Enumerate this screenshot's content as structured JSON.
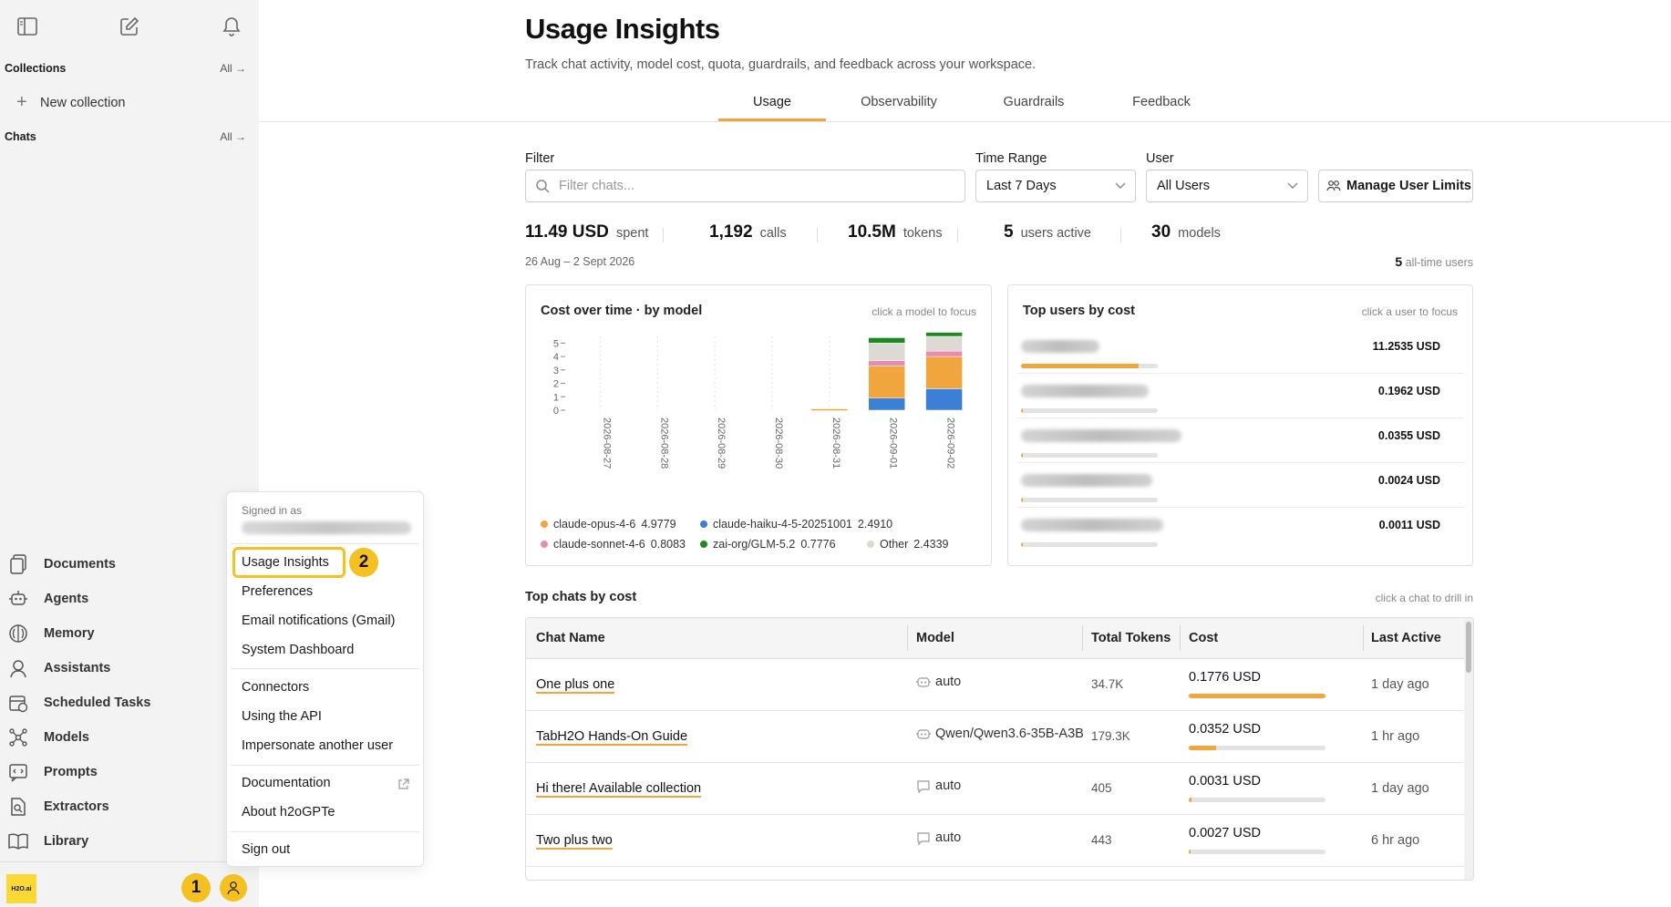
{
  "sidebar": {
    "collections_title": "Collections",
    "collections_all": "All →",
    "new_collection": "New collection",
    "chats_title": "Chats",
    "chats_all": "All →",
    "nav": [
      {
        "label": "Documents",
        "icon": "documents-icon"
      },
      {
        "label": "Agents",
        "icon": "agents-icon"
      },
      {
        "label": "Memory",
        "icon": "memory-icon"
      },
      {
        "label": "Assistants",
        "icon": "assistants-icon"
      },
      {
        "label": "Scheduled Tasks",
        "icon": "calendar-icon"
      },
      {
        "label": "Models",
        "icon": "models-icon"
      },
      {
        "label": "Prompts",
        "icon": "prompts-icon"
      },
      {
        "label": "Extractors",
        "icon": "extractors-icon"
      },
      {
        "label": "Library",
        "icon": "library-icon"
      }
    ],
    "logo_text": "H2O.ai",
    "badge_1": "1",
    "badge_2": "2"
  },
  "menu": {
    "signed_in_as": "Signed in as",
    "items": {
      "usage_insights": "Usage Insights",
      "preferences": "Preferences",
      "email_notifications": "Email notifications (Gmail)",
      "system_dashboard": "System Dashboard",
      "connectors": "Connectors",
      "using_api": "Using the API",
      "impersonate": "Impersonate another user",
      "documentation": "Documentation",
      "about": "About h2oGPTe",
      "sign_out": "Sign out"
    }
  },
  "header": {
    "title": "Usage Insights",
    "subtitle": "Track chat activity, model cost, quota, guardrails, and feedback across your workspace.",
    "tabs": [
      "Usage",
      "Observability",
      "Guardrails",
      "Feedback"
    ],
    "active_tab": "Usage"
  },
  "filters": {
    "filter_label": "Filter",
    "filter_placeholder": "Filter chats...",
    "time_label": "Time Range",
    "time_value": "Last 7 Days",
    "user_label": "User",
    "user_value": "All Users",
    "manage_limits": "Manage User Limits"
  },
  "stats": {
    "spent_value": "11.49 USD",
    "spent_label": "spent",
    "calls_value": "1,192",
    "calls_label": "calls",
    "tokens_value": "10.5M",
    "tokens_label": "tokens",
    "users_value": "5",
    "users_label": "users active",
    "models_value": "30",
    "models_label": "models",
    "date_range": "26 Aug – 2 Sept 2026",
    "alltime_value": "5",
    "alltime_label": "all-time users"
  },
  "cost_chart": {
    "title": "Cost over time · by model",
    "hint": "click a model to focus",
    "legend": [
      {
        "name": "claude-opus-4-6",
        "value": "4.9779",
        "color": "#f0a63c"
      },
      {
        "name": "claude-haiku-4-5-20251001",
        "value": "2.4910",
        "color": "#3b7fd6"
      },
      {
        "name": "claude-sonnet-4-6",
        "value": "0.8083",
        "color": "#e88bb0"
      },
      {
        "name": "zai-org/GLM-5.2",
        "value": "0.7776",
        "color": "#1e8a1e"
      },
      {
        "name": "Other",
        "value": "2.4339",
        "color": "#dcdad3"
      }
    ]
  },
  "chart_data": {
    "type": "bar",
    "stacked": true,
    "categories": [
      "2026-08-27",
      "2026-08-28",
      "2026-08-29",
      "2026-08-30",
      "2026-08-31",
      "2026-09-01",
      "2026-09-02"
    ],
    "series": [
      {
        "name": "claude-haiku-4-5-20251001",
        "color": "#3b7fd6",
        "values": [
          0,
          0,
          0,
          0,
          0,
          0.9,
          1.6
        ]
      },
      {
        "name": "claude-opus-4-6",
        "color": "#f0a63c",
        "values": [
          0,
          0,
          0,
          0,
          0.1,
          2.4,
          2.4
        ]
      },
      {
        "name": "claude-sonnet-4-6",
        "color": "#e88bb0",
        "values": [
          0,
          0,
          0,
          0,
          0,
          0.4,
          0.4
        ]
      },
      {
        "name": "Other",
        "color": "#dcdad3",
        "values": [
          0,
          0,
          0,
          0,
          0,
          1.3,
          1.1
        ]
      },
      {
        "name": "zai-org/GLM-5.2",
        "color": "#1e8a1e",
        "values": [
          0,
          0,
          0,
          0,
          0,
          0.4,
          0.3
        ]
      }
    ],
    "yticks": [
      0,
      1,
      2,
      3,
      4,
      5
    ],
    "ylim": [
      0,
      5.5
    ]
  },
  "top_users": {
    "title": "Top users by cost",
    "hint": "click a user to focus",
    "rows": [
      {
        "cost": "11.2535 USD",
        "share": 0.86
      },
      {
        "cost": "0.1962 USD",
        "share": 0.015
      },
      {
        "cost": "0.0355 USD",
        "share": 0.01
      },
      {
        "cost": "0.0024 USD",
        "share": 0.003
      },
      {
        "cost": "0.0011 USD",
        "share": 0.002
      }
    ]
  },
  "top_chats": {
    "title": "Top chats by cost",
    "hint": "click a chat to drill in",
    "columns": [
      "Chat Name",
      "Model",
      "Total Tokens",
      "Cost",
      "Last Active"
    ],
    "rows": [
      {
        "name": "One plus one",
        "model": "auto",
        "model_icon": "robot-icon",
        "tokens": "34.7K",
        "cost": "0.1776 USD",
        "share": 1.0,
        "last": "1 day ago"
      },
      {
        "name": "TabH2O Hands-On Guide",
        "model": "Qwen/Qwen3.6-35B-A3B",
        "model_icon": "robot-icon",
        "tokens": "179.3K",
        "cost": "0.0352 USD",
        "share": 0.2,
        "last": "1 hr ago"
      },
      {
        "name": "Hi there! Available collection",
        "model": "auto",
        "model_icon": "chat-icon",
        "tokens": "405",
        "cost": "0.0031 USD",
        "share": 0.02,
        "last": "1 day ago"
      },
      {
        "name": "Two plus two",
        "model": "auto",
        "model_icon": "chat-icon",
        "tokens": "443",
        "cost": "0.0027 USD",
        "share": 0.015,
        "last": "6 hr ago"
      }
    ]
  }
}
